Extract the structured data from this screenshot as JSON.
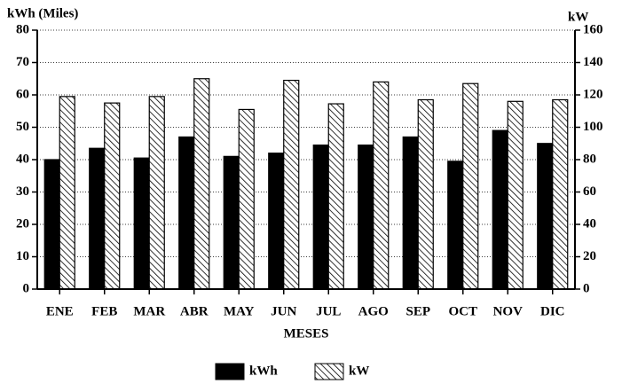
{
  "chart_data": {
    "type": "bar",
    "y_label": "kWh (Miles)",
    "y2_label": "kW",
    "x_label": "MESES",
    "categories": [
      "ENE",
      "FEB",
      "MAR",
      "ABR",
      "MAY",
      "JUN",
      "JUL",
      "AGO",
      "SEP",
      "OCT",
      "NOV",
      "DIC"
    ],
    "series": [
      {
        "name": "kWh",
        "color": "#000000",
        "values": [
          40,
          43.5,
          40.5,
          47,
          41,
          42,
          44.5,
          44.5,
          47,
          39.5,
          49,
          45
        ]
      },
      {
        "name": "kW",
        "color": "#000000",
        "hatch": true,
        "axis": "y2",
        "values": [
          119,
          115,
          119,
          130,
          111,
          129,
          114.5,
          128,
          117,
          127,
          116,
          117
        ]
      }
    ],
    "ylim": [
      0,
      80
    ],
    "yticks": [
      0,
      10,
      20,
      30,
      40,
      50,
      60,
      70,
      80
    ],
    "y2lim": [
      0,
      160
    ],
    "y2ticks": [
      0,
      20,
      40,
      60,
      80,
      100,
      120,
      140,
      160
    ],
    "grid": true,
    "legend": "bottom"
  }
}
